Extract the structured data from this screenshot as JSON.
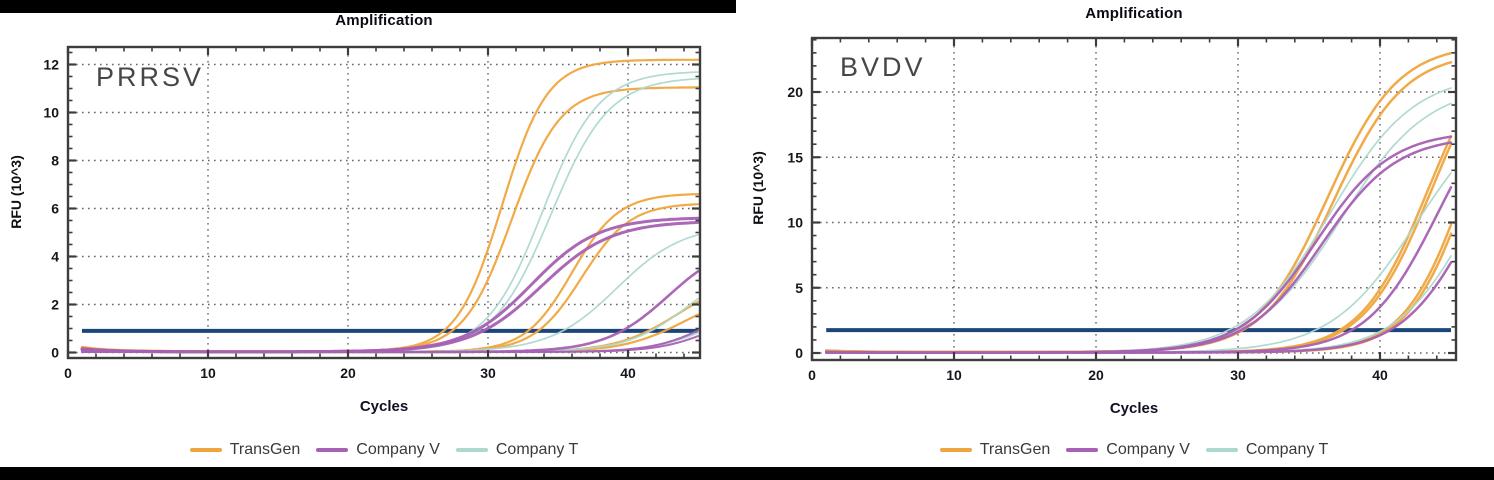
{
  "figure": {
    "description": "Two real-time PCR amplification plots comparing reagent suppliers",
    "title_left": "Amplification",
    "title_right": "Amplification"
  },
  "colors": {
    "transgen": "#EFA53E",
    "company_v": "#A760B3",
    "company_t": "#ACD8D0",
    "threshold": "#1B4679",
    "grid": "#666666",
    "spine": "#3d3d3d",
    "tick_label": "#16161f",
    "title": "#0a0a14"
  },
  "legend": {
    "items": [
      {
        "label": "TransGen",
        "color_key": "transgen"
      },
      {
        "label": "Company V",
        "color_key": "company_v"
      },
      {
        "label": "Company T",
        "color_key": "company_t"
      }
    ]
  },
  "chart_data": [
    {
      "type": "line",
      "panel_label": "PRRSV",
      "title": "Amplification",
      "xlabel": "Cycles",
      "ylabel": "RFU (10^3)",
      "xlim": [
        0,
        45.1
      ],
      "ylim": [
        0,
        12.9
      ],
      "x_major_ticks": [
        0,
        10,
        20,
        30,
        40
      ],
      "x_minor_step": 2,
      "y_major_ticks": [
        0,
        2,
        4,
        6,
        8,
        10,
        12
      ],
      "y_minor_step": 0.5,
      "grid_x": [
        10,
        20,
        30,
        40
      ],
      "grid_y": [
        0,
        2,
        4,
        6,
        8,
        10,
        12
      ],
      "threshold": 0.9,
      "x_start": 1,
      "x_end": 45,
      "legend_position": "bottom",
      "series": [
        {
          "company": "TransGen",
          "color_key": "transgen",
          "plateau": 12.15,
          "midpoint": 31.0,
          "slope": 0.62,
          "baseline": 0.05,
          "initial_bump": 0.18,
          "stroke_width": 2.2,
          "ct_approx": 27,
          "end_value": 12.1
        },
        {
          "company": "TransGen",
          "color_key": "transgen",
          "plateau": 11.0,
          "midpoint": 31.7,
          "slope": 0.58,
          "baseline": 0.05,
          "initial_bump": 0.15,
          "stroke_width": 2.2,
          "ct_approx": 27.5,
          "end_value": 11.0
        },
        {
          "company": "TransGen",
          "color_key": "transgen",
          "plateau": 6.6,
          "midpoint": 36.0,
          "slope": 0.6,
          "baseline": 0.03,
          "initial_bump": 0.1,
          "stroke_width": 2.2,
          "ct_approx": 32.8,
          "end_value": 6.6
        },
        {
          "company": "TransGen",
          "color_key": "transgen",
          "plateau": 6.2,
          "midpoint": 36.7,
          "slope": 0.58,
          "baseline": 0.03,
          "initial_bump": 0.08,
          "stroke_width": 2.2,
          "ct_approx": 33.4,
          "end_value": 6.1
        },
        {
          "company": "TransGen",
          "color_key": "transgen",
          "plateau": 3.2,
          "midpoint": 43.6,
          "slope": 0.45,
          "baseline": 0.02,
          "initial_bump": 0.12,
          "stroke_width": 2.2,
          "ct_approx": 39,
          "end_value": 2.1
        },
        {
          "company": "TransGen",
          "color_key": "transgen",
          "plateau": 2.6,
          "midpoint": 44.1,
          "slope": 0.45,
          "baseline": 0.02,
          "initial_bump": 0.1,
          "stroke_width": 2.2,
          "ct_approx": 40,
          "end_value": 1.55
        },
        {
          "company": "Company T",
          "color_key": "company_t",
          "plateau": 11.7,
          "midpoint": 33.9,
          "slope": 0.5,
          "baseline": 0.03,
          "initial_bump": 0.0,
          "stroke_width": 1.7,
          "ct_approx": 29.3,
          "end_value": 11.6
        },
        {
          "company": "Company T",
          "color_key": "company_t",
          "plateau": 11.45,
          "midpoint": 34.5,
          "slope": 0.48,
          "baseline": 0.03,
          "initial_bump": 0.0,
          "stroke_width": 1.7,
          "ct_approx": 30,
          "end_value": 11.3
        },
        {
          "company": "Company T",
          "color_key": "company_t",
          "plateau": 5.3,
          "midpoint": 39.2,
          "slope": 0.42,
          "baseline": 0.03,
          "initial_bump": 0.0,
          "stroke_width": 1.7,
          "ct_approx": 34.7,
          "end_value": 4.8
        },
        {
          "company": "Company T",
          "color_key": "company_t",
          "plateau": 3.9,
          "midpoint": 44.4,
          "slope": 0.45,
          "baseline": 0.03,
          "initial_bump": 0.0,
          "stroke_width": 1.7,
          "ct_approx": 41,
          "end_value": 2.2
        },
        {
          "company": "Company T",
          "color_key": "company_t",
          "plateau": 2.2,
          "midpoint": 46.2,
          "slope": 0.48,
          "baseline": 0.03,
          "initial_bump": 0.0,
          "stroke_width": 1.7,
          "ct_approx": 44,
          "end_value": 0.8
        },
        {
          "company": "Company V",
          "color_key": "company_v",
          "plateau": 5.6,
          "midpoint": 33.1,
          "slope": 0.42,
          "baseline": 0.03,
          "initial_bump": 0.13,
          "stroke_width": 3.0,
          "ct_approx": 29,
          "end_value": 5.55
        },
        {
          "company": "Company V",
          "color_key": "company_v",
          "plateau": 5.45,
          "midpoint": 33.8,
          "slope": 0.4,
          "baseline": 0.03,
          "initial_bump": 0.11,
          "stroke_width": 3.0,
          "ct_approx": 29.7,
          "end_value": 5.4
        },
        {
          "company": "Company V",
          "color_key": "company_v",
          "plateau": 4.7,
          "midpoint": 42.9,
          "slope": 0.44,
          "baseline": 0.02,
          "initial_bump": 0.08,
          "stroke_width": 2.6,
          "ct_approx": 38.5,
          "end_value": 3.35
        },
        {
          "company": "Company V",
          "color_key": "company_v",
          "plateau": 2.3,
          "midpoint": 45.9,
          "slope": 0.5,
          "baseline": 0.02,
          "initial_bump": 0.0,
          "stroke_width": 2.0,
          "ct_approx": 44.5,
          "end_value": 0.95
        },
        {
          "company": "Company V",
          "color_key": "company_v",
          "plateau": 2.0,
          "midpoint": 46.4,
          "slope": 0.5,
          "baseline": 0.02,
          "initial_bump": 0.0,
          "stroke_width": 2.0,
          "ct_approx": 45,
          "end_value": 0.7
        }
      ]
    },
    {
      "type": "line",
      "panel_label": "BVDV",
      "title": "Amplification",
      "xlabel": "Cycles",
      "ylabel": "RFU (10^3)",
      "xlim": [
        0,
        45.35
      ],
      "ylim": [
        0,
        24.1
      ],
      "x_major_ticks": [
        0,
        10,
        20,
        30,
        40
      ],
      "x_minor_step": 2,
      "y_major_ticks": [
        0,
        5,
        10,
        15,
        20
      ],
      "y_minor_step": 1,
      "grid_x": [
        10,
        20,
        30,
        40
      ],
      "grid_y": [
        0,
        5,
        10,
        15,
        20
      ],
      "threshold": 1.75,
      "x_start": 1,
      "x_end": 45,
      "legend_position": "bottom",
      "series": [
        {
          "company": "TransGen",
          "color_key": "transgen",
          "plateau": 23.6,
          "midpoint": 36.3,
          "slope": 0.4,
          "baseline": 0.08,
          "initial_bump": 0.12,
          "stroke_width": 2.5,
          "ct_approx": 29.9,
          "end_value": 23.0
        },
        {
          "company": "TransGen",
          "color_key": "transgen",
          "plateau": 23.0,
          "midpoint": 36.7,
          "slope": 0.4,
          "baseline": 0.08,
          "initial_bump": 0.1,
          "stroke_width": 2.5,
          "ct_approx": 30.3,
          "end_value": 22.3
        },
        {
          "company": "TransGen",
          "color_key": "transgen",
          "plateau": 25.0,
          "midpoint": 43.4,
          "slope": 0.42,
          "baseline": 0.05,
          "initial_bump": 0.1,
          "stroke_width": 2.5,
          "ct_approx": 37,
          "end_value": 16.6
        },
        {
          "company": "TransGen",
          "color_key": "transgen",
          "plateau": 25.0,
          "midpoint": 43.65,
          "slope": 0.42,
          "baseline": 0.05,
          "initial_bump": 0.08,
          "stroke_width": 2.5,
          "ct_approx": 37.3,
          "end_value": 16.0
        },
        {
          "company": "TransGen",
          "color_key": "transgen",
          "plateau": 26.0,
          "midpoint": 46.1,
          "slope": 0.46,
          "baseline": 0.05,
          "initial_bump": 0.1,
          "stroke_width": 2.5,
          "ct_approx": 40.5,
          "end_value": 9.8
        },
        {
          "company": "TransGen",
          "color_key": "transgen",
          "plateau": 26.0,
          "midpoint": 46.35,
          "slope": 0.46,
          "baseline": 0.05,
          "initial_bump": 0.08,
          "stroke_width": 2.5,
          "ct_approx": 40.8,
          "end_value": 9.2
        },
        {
          "company": "Company T",
          "color_key": "company_t",
          "plateau": 21.4,
          "midpoint": 36.5,
          "slope": 0.34,
          "baseline": 0.03,
          "initial_bump": 0.0,
          "stroke_width": 1.7,
          "ct_approx": 29.3,
          "end_value": 20.3
        },
        {
          "company": "Company T",
          "color_key": "company_t",
          "plateau": 20.6,
          "midpoint": 37.3,
          "slope": 0.33,
          "baseline": 0.03,
          "initial_bump": 0.0,
          "stroke_width": 1.7,
          "ct_approx": 30,
          "end_value": 19.1
        },
        {
          "company": "Company T",
          "color_key": "company_t",
          "plateau": 20.0,
          "midpoint": 42.6,
          "slope": 0.33,
          "baseline": 0.03,
          "initial_bump": 0.0,
          "stroke_width": 1.7,
          "ct_approx": 35.6,
          "end_value": 13.7
        },
        {
          "company": "Company T",
          "color_key": "company_t",
          "plateau": 20.0,
          "midpoint": 46.4,
          "slope": 0.38,
          "baseline": 0.03,
          "initial_bump": 0.0,
          "stroke_width": 1.7,
          "ct_approx": 40.3,
          "end_value": 7.6
        },
        {
          "company": "Company V",
          "color_key": "company_v",
          "plateau": 17.0,
          "midpoint": 35.5,
          "slope": 0.38,
          "baseline": 0.03,
          "initial_bump": 0.05,
          "stroke_width": 2.5,
          "ct_approx": 30,
          "end_value": 16.6
        },
        {
          "company": "Company V",
          "color_key": "company_v",
          "plateau": 16.6,
          "midpoint": 35.9,
          "slope": 0.38,
          "baseline": 0.03,
          "initial_bump": 0.05,
          "stroke_width": 2.5,
          "ct_approx": 30.4,
          "end_value": 16.1
        },
        {
          "company": "Company V",
          "color_key": "company_v",
          "plateau": 21.5,
          "midpoint": 44.1,
          "slope": 0.4,
          "baseline": 0.03,
          "initial_bump": 0.0,
          "stroke_width": 2.5,
          "ct_approx": 38.1,
          "end_value": 12.7
        },
        {
          "company": "Company V",
          "color_key": "company_v",
          "plateau": 20.0,
          "midpoint": 46.6,
          "slope": 0.4,
          "baseline": 0.03,
          "initial_bump": 0.0,
          "stroke_width": 2.5,
          "ct_approx": 40.6,
          "end_value": 7.3
        }
      ]
    }
  ]
}
